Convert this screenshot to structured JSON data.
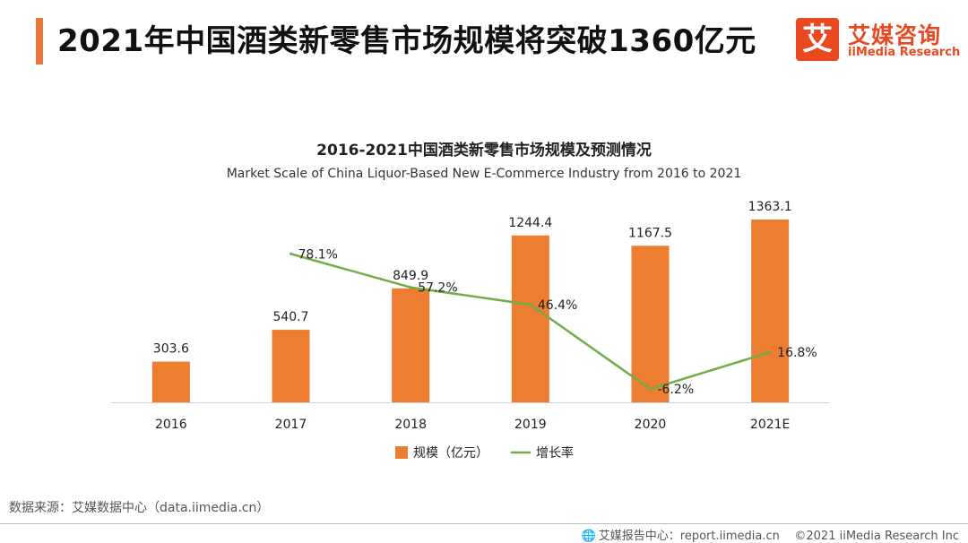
{
  "header": {
    "title": "2021年中国酒类新零售市场规模将突破1360亿元"
  },
  "logo": {
    "mark": "艾",
    "name_cn": "艾媒咨询",
    "name_en": "iiMedia Research",
    "brand_color": "#e8491f"
  },
  "chart_data": {
    "type": "bar",
    "title": "2016-2021中国酒类新零售市场规模及预测情况",
    "subtitle": "Market Scale of China  Liquor-Based New E-Commerce Industry from 2016 to 2021",
    "categories": [
      "2016",
      "2017",
      "2018",
      "2019",
      "2020",
      "2021E"
    ],
    "series": [
      {
        "name": "规模（亿元）",
        "type": "bar",
        "values": [
          303.6,
          540.7,
          849.9,
          1244.4,
          1167.5,
          1363.1
        ],
        "labels": [
          "303.6",
          "540.7",
          "849.9",
          "1244.4",
          "1167.5",
          "1363.1"
        ],
        "color": "#ed7d31"
      },
      {
        "name": "增长率",
        "type": "line",
        "x": [
          "2017",
          "2018",
          "2019",
          "2020",
          "2021E"
        ],
        "values": [
          78.1,
          57.2,
          46.4,
          -6.2,
          16.8
        ],
        "labels": [
          "78.1%",
          "57.2%",
          "46.4%",
          "-6.2%",
          "16.8%"
        ],
        "color": "#70ad47"
      }
    ],
    "ylim": [
      0,
      1450
    ],
    "y2lim": [
      -10,
      90
    ],
    "legend": "bottom",
    "grid": false
  },
  "source": "数据来源：艾媒数据中心（data.iimedia.cn）",
  "footer": {
    "globe_icon": "globe-icon",
    "report_center": "艾媒报告中心：report.iimedia.cn",
    "copyright": "©2021  iiMedia Research  Inc"
  }
}
